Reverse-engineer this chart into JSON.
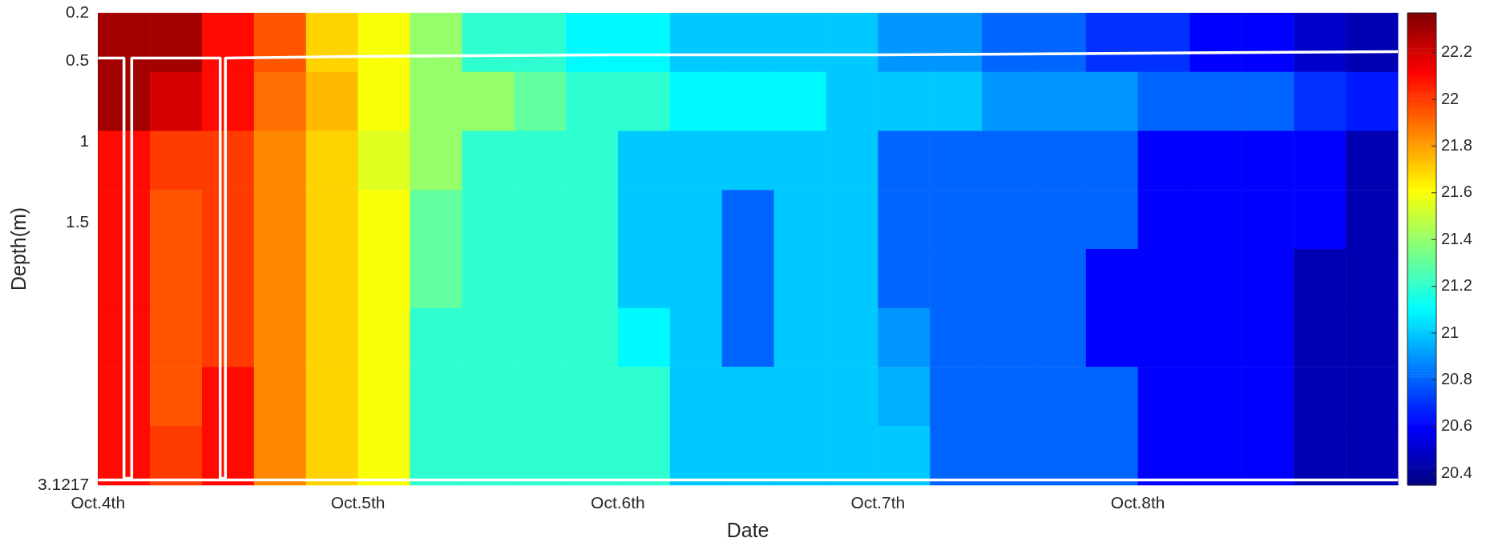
{
  "chart_data": {
    "type": "heatmap",
    "xlabel": "Date",
    "ylabel": "Depth(m)",
    "x": [
      "--10-04T02:24",
      "--10-04T07:12",
      "--10-04T12:00",
      "--10-04T16:48",
      "--10-04T21:36",
      "--10-05T02:24",
      "--10-05T07:12",
      "--10-05T12:00",
      "--10-05T16:48",
      "--10-05T21:36",
      "--10-06T02:24",
      "--10-06T07:12",
      "--10-06T12:00",
      "--10-06T16:48",
      "--10-06T21:36",
      "--10-07T02:24",
      "--10-07T07:12",
      "--10-07T12:00",
      "--10-07T16:48",
      "--10-07T21:36",
      "--10-08T02:24",
      "--10-08T07:12",
      "--10-08T12:00",
      "--10-08T16:48",
      "--10-08T21:36"
    ],
    "cells": [
      [
        22.3,
        22.3,
        22.1,
        21.95,
        21.7,
        21.6,
        21.4,
        21.2,
        21.2,
        21.1,
        21.1,
        21.0,
        21.0,
        21.0,
        21.0,
        20.9,
        20.9,
        20.8,
        20.8,
        20.7,
        20.7,
        20.6,
        20.6,
        20.5,
        20.45
      ],
      [
        22.3,
        22.2,
        22.1,
        21.9,
        21.75,
        21.6,
        21.4,
        21.4,
        21.3,
        21.2,
        21.2,
        21.1,
        21.1,
        21.1,
        21.0,
        21.0,
        21.0,
        20.9,
        20.9,
        20.9,
        20.8,
        20.8,
        20.8,
        20.7,
        20.65
      ],
      [
        22.1,
        22.0,
        22.0,
        21.85,
        21.7,
        21.55,
        21.4,
        21.2,
        21.2,
        21.2,
        21.0,
        21.0,
        21.0,
        21.0,
        21.0,
        20.8,
        20.8,
        20.8,
        20.8,
        20.8,
        20.6,
        20.6,
        20.6,
        20.6,
        20.45
      ],
      [
        22.1,
        21.95,
        22.0,
        21.85,
        21.7,
        21.6,
        21.3,
        21.2,
        21.2,
        21.2,
        21.0,
        21.0,
        20.8,
        21.0,
        21.0,
        20.8,
        20.8,
        20.8,
        20.8,
        20.8,
        20.6,
        20.6,
        20.6,
        20.6,
        20.45
      ],
      [
        22.1,
        21.95,
        22.0,
        21.85,
        21.7,
        21.6,
        21.3,
        21.2,
        21.2,
        21.2,
        21.0,
        21.0,
        20.8,
        21.0,
        21.0,
        20.8,
        20.8,
        20.8,
        20.8,
        20.6,
        20.6,
        20.6,
        20.6,
        20.45,
        20.45
      ],
      [
        22.1,
        21.95,
        22.0,
        21.85,
        21.7,
        21.6,
        21.2,
        21.2,
        21.2,
        21.2,
        21.1,
        21.0,
        20.8,
        21.0,
        21.0,
        20.9,
        20.8,
        20.8,
        20.8,
        20.6,
        20.6,
        20.6,
        20.6,
        20.45,
        20.45
      ],
      [
        22.1,
        21.95,
        22.1,
        21.85,
        21.7,
        21.6,
        21.2,
        21.2,
        21.2,
        21.2,
        21.2,
        21.0,
        21.0,
        21.0,
        21.0,
        20.95,
        20.8,
        20.8,
        20.8,
        20.8,
        20.6,
        20.6,
        20.6,
        20.45,
        20.45
      ],
      [
        22.1,
        22.0,
        22.1,
        21.85,
        21.7,
        21.6,
        21.2,
        21.2,
        21.2,
        21.2,
        21.2,
        21.0,
        21.0,
        21.0,
        21.0,
        21.0,
        20.8,
        20.8,
        20.8,
        20.8,
        20.6,
        20.6,
        20.6,
        20.45,
        20.45
      ]
    ],
    "clim": [
      20.35,
      22.37
    ],
    "cticks": [
      20.4,
      20.6,
      20.8,
      21,
      21.2,
      21.4,
      21.6,
      21.8,
      22,
      22.2
    ],
    "xlim": [
      "--10-04T00:00",
      "--10-09T00:00"
    ],
    "xticks": [
      {
        "value": "--10-04",
        "label": "Oct.4th"
      },
      {
        "value": "--10-05",
        "label": "Oct.5th"
      },
      {
        "value": "--10-06",
        "label": "Oct.6th"
      },
      {
        "value": "--10-07",
        "label": "Oct.7th"
      },
      {
        "value": "--10-08",
        "label": "Oct.8th"
      }
    ],
    "ylim": [
      3.1217,
      0.2
    ],
    "yticks": [
      0.2,
      0.5,
      1,
      1.5,
      3.1217
    ],
    "series": [
      {
        "type": "line",
        "color": "#ffffff",
        "x": [
          "--10-04T00:00",
          "--10-04T02:24",
          "--10-04T02:24",
          "--10-04T03:07",
          "--10-04T03:07",
          "--10-04T11:17",
          "--10-04T11:17",
          "--10-04T11:46",
          "--10-04T11:46",
          "--10-05T00:00",
          "--10-06T00:00",
          "--10-07T00:00",
          "--10-08T00:00",
          "--10-09T00:00"
        ],
        "values": [
          0.48,
          0.48,
          3.08,
          3.08,
          0.48,
          0.48,
          3.08,
          3.08,
          0.48,
          0.47,
          0.46,
          0.46,
          0.45,
          0.44
        ]
      },
      {
        "type": "line",
        "color": "#ffffff",
        "x": [
          "--10-04T00:00",
          "--10-09T00:00"
        ],
        "values": [
          3.09,
          3.09
        ]
      }
    ],
    "grid": false,
    "legend": false
  }
}
